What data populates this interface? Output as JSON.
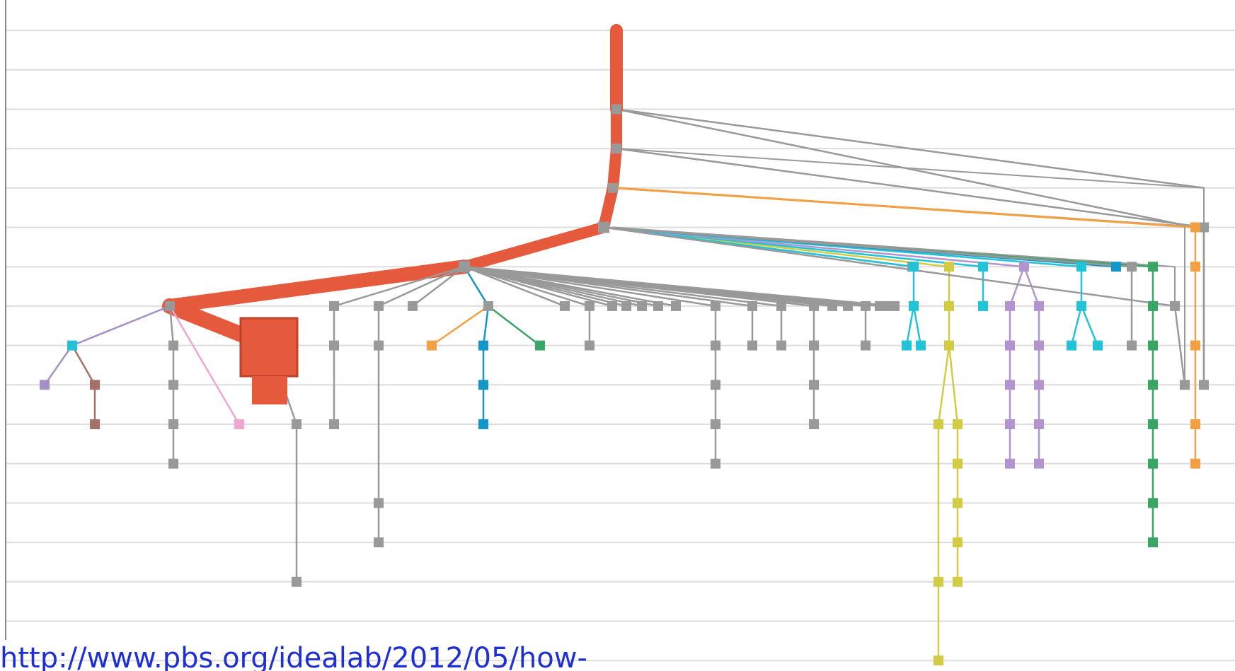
{
  "source_link": "http://www.pbs.org/idealab/2012/05/how-",
  "colors": {
    "grid": "#dddddd",
    "axis": "#888888",
    "gray": "#999999",
    "red": "#e55a3c",
    "darkred": "#c0412a",
    "lavender": "#a58fc7",
    "cyan": "#22c3d6",
    "brown": "#a6706a",
    "pink": "#f2a6cf",
    "orange": "#f3a044",
    "blue": "#1496c8",
    "green": "#3aa565",
    "yellow": "#d2cc45",
    "purple": "#b294cf"
  },
  "diagram": {
    "type": "reshare-tree",
    "levels": 16,
    "edges": [
      [
        "gray",
        "x30",
        "x13"
      ],
      [
        "gray",
        "x50",
        "x11"
      ],
      [
        "gray",
        "x20",
        "x11"
      ],
      [
        "red",
        "r0",
        "r1"
      ],
      [
        "red",
        "r1",
        "r2"
      ],
      [
        "red",
        "r2",
        "r3"
      ],
      [
        "red",
        "r3",
        "r4"
      ],
      [
        "red",
        "r4",
        "r5"
      ],
      [
        "red",
        "r5",
        "r6"
      ],
      [
        "red",
        "r6",
        "rbig"
      ],
      [
        "lavender",
        "r6",
        "c7"
      ],
      [
        "lavender",
        "c7",
        "l8"
      ],
      [
        "brown",
        "c7",
        "b8"
      ],
      [
        "brown",
        "b8",
        "b9"
      ],
      [
        "gray",
        "r6",
        "g7a"
      ],
      [
        "gray",
        "g7a",
        "g8a"
      ],
      [
        "gray",
        "g8a",
        "g9a"
      ],
      [
        "gray",
        "g9a",
        "g10a"
      ],
      [
        "pink",
        "r6",
        "p9"
      ],
      [
        "gray",
        "rbig",
        "g9b"
      ],
      [
        "gray",
        "g9b",
        "g14b"
      ],
      [
        "gray",
        "r5",
        "g7c"
      ],
      [
        "gray",
        "g7c",
        "g8c"
      ],
      [
        "gray",
        "g8c",
        "g9c"
      ],
      [
        "gray",
        "r5",
        "g7d"
      ],
      [
        "gray",
        "g7d",
        "g8d"
      ],
      [
        "gray",
        "g8d",
        "g12d"
      ],
      [
        "gray",
        "g12d",
        "g13d"
      ],
      [
        "gray",
        "r5",
        "g7e"
      ],
      [
        "blue",
        "r5",
        "t7"
      ],
      [
        "orange",
        "t7",
        "o8"
      ],
      [
        "blue",
        "t7",
        "bl8"
      ],
      [
        "blue",
        "bl8",
        "bl9"
      ],
      [
        "blue",
        "bl9",
        "bl10"
      ],
      [
        "green",
        "t7",
        "gr8"
      ],
      [
        "gray",
        "r5",
        "f1"
      ],
      [
        "gray",
        "r5",
        "f2"
      ],
      [
        "gray",
        "f2",
        "f2b"
      ],
      [
        "gray",
        "r5",
        "f3"
      ],
      [
        "gray",
        "r5",
        "f4"
      ],
      [
        "gray",
        "r5",
        "f5"
      ],
      [
        "gray",
        "r5",
        "f6"
      ],
      [
        "gray",
        "r5",
        "f7"
      ],
      [
        "gray",
        "r5",
        "h1"
      ],
      [
        "gray",
        "h1",
        "h1b"
      ],
      [
        "gray",
        "h1b",
        "h1c"
      ],
      [
        "gray",
        "h1c",
        "h1d"
      ],
      [
        "gray",
        "h1d",
        "h1e"
      ],
      [
        "gray",
        "r5",
        "h2"
      ],
      [
        "gray",
        "h2",
        "h2b"
      ],
      [
        "gray",
        "r5",
        "h3"
      ],
      [
        "gray",
        "h3",
        "h3b"
      ],
      [
        "gray",
        "r5",
        "h4"
      ],
      [
        "gray",
        "h4",
        "h4b"
      ],
      [
        "gray",
        "h4b",
        "h4c"
      ],
      [
        "gray",
        "h4c",
        "h4d"
      ],
      [
        "gray",
        "r5",
        "h5"
      ],
      [
        "gray",
        "r5",
        "h6"
      ],
      [
        "gray",
        "r5",
        "h7"
      ],
      [
        "gray",
        "h7",
        "h7b"
      ],
      [
        "gray",
        "r5",
        "q1"
      ],
      [
        "gray",
        "r5",
        "q2"
      ],
      [
        "gray",
        "r5",
        "q3"
      ],
      [
        "lavender",
        "r4",
        "m6"
      ],
      [
        "green",
        "r4",
        "n0"
      ],
      [
        "green",
        "n0",
        "n1"
      ],
      [
        "green",
        "n1",
        "n2"
      ],
      [
        "green",
        "n2",
        "n3"
      ],
      [
        "green",
        "n3",
        "n4"
      ],
      [
        "green",
        "n4",
        "n5"
      ],
      [
        "green",
        "n5",
        "n6"
      ],
      [
        "green",
        "n6",
        "n7"
      ],
      [
        "yellow",
        "r4",
        "y0"
      ],
      [
        "yellow",
        "y0",
        "y1"
      ],
      [
        "yellow",
        "y1",
        "y2"
      ],
      [
        "yellow",
        "y2",
        "yl1"
      ],
      [
        "yellow",
        "yl1",
        "yl2"
      ],
      [
        "yellow",
        "yl2",
        "yl3"
      ],
      [
        "yellow",
        "y2",
        "yr1"
      ],
      [
        "yellow",
        "yr1",
        "yr2"
      ],
      [
        "yellow",
        "yr2",
        "yr3"
      ],
      [
        "yellow",
        "yr3",
        "yr4"
      ],
      [
        "yellow",
        "yr4",
        "yr5"
      ],
      [
        "cyan",
        "r4",
        "cy0"
      ],
      [
        "cyan",
        "cy0",
        "cy1"
      ],
      [
        "cyan",
        "cy1",
        "cy2a"
      ],
      [
        "cyan",
        "cy1",
        "cy2b"
      ],
      [
        "cyan",
        "r4",
        "cy3"
      ],
      [
        "cyan",
        "cy3",
        "cy4"
      ],
      [
        "purple",
        "r4",
        "pu0"
      ],
      [
        "purple",
        "pu0",
        "pu1a"
      ],
      [
        "purple",
        "pu1a",
        "pu2a"
      ],
      [
        "purple",
        "pu2a",
        "pu3a"
      ],
      [
        "purple",
        "pu3a",
        "pu4a"
      ],
      [
        "purple",
        "pu4a",
        "pu5a"
      ],
      [
        "purple",
        "pu0",
        "pu1b"
      ],
      [
        "purple",
        "pu1b",
        "pu2b"
      ],
      [
        "purple",
        "pu2b",
        "pu3b"
      ],
      [
        "purple",
        "pu3b",
        "pu4b"
      ],
      [
        "purple",
        "pu4b",
        "pu5b"
      ],
      [
        "cyan",
        "r4",
        "cz0"
      ],
      [
        "cyan",
        "cz0",
        "cz1"
      ],
      [
        "cyan",
        "cz1",
        "cz2a"
      ],
      [
        "cyan",
        "cz1",
        "cz2b"
      ],
      [
        "blue",
        "r4",
        "db0"
      ],
      [
        "gray",
        "r4",
        "gg0"
      ],
      [
        "gray",
        "gg0",
        "gg1"
      ],
      [
        "gray",
        "r4",
        "gg2"
      ],
      [
        "gray",
        "gg2",
        "gg3"
      ],
      [
        "gray",
        "r2",
        "x30"
      ],
      [
        "gray",
        "x30",
        "x31"
      ],
      [
        "gray",
        "x31",
        "x32"
      ],
      [
        "orange",
        "r3",
        "o0"
      ],
      [
        "orange",
        "o0",
        "o1"
      ],
      [
        "orange",
        "o1",
        "o2"
      ],
      [
        "orange",
        "o2",
        "o3"
      ],
      [
        "orange",
        "o3",
        "o4"
      ]
    ]
  }
}
